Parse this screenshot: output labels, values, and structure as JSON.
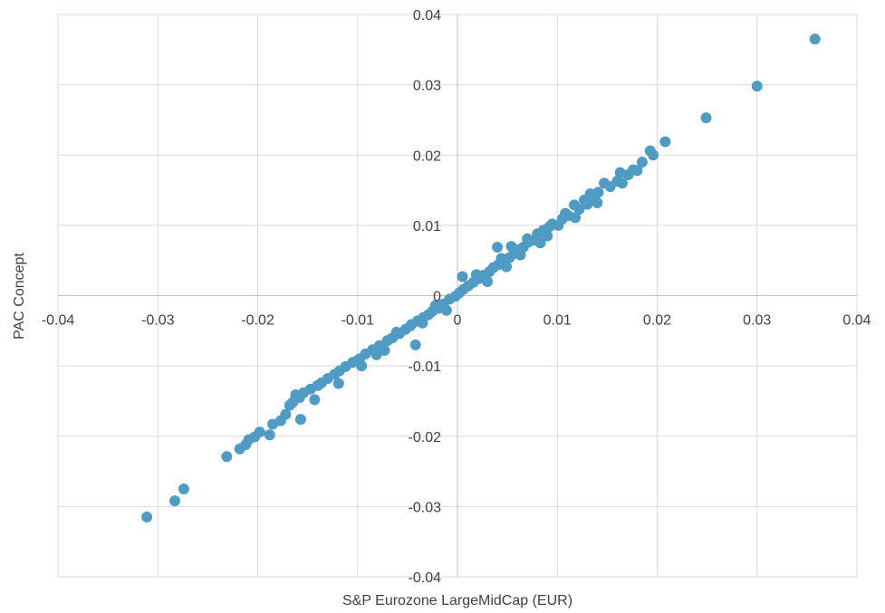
{
  "chart_data": {
    "type": "scatter",
    "title": "",
    "xlabel": "S&P Eurozone LargeMidCap (EUR)",
    "ylabel": "PAC Concept",
    "xlim": [
      -0.04,
      0.04
    ],
    "ylim": [
      -0.04,
      0.04
    ],
    "x_ticks": [
      -0.04,
      -0.03,
      -0.02,
      -0.01,
      0,
      0.01,
      0.02,
      0.03,
      0.04
    ],
    "y_ticks": [
      -0.04,
      -0.03,
      -0.02,
      -0.01,
      0,
      0.01,
      0.02,
      0.03,
      0.04
    ],
    "x_tick_labels": [
      "-0.04",
      "-0.03",
      "-0.02",
      "-0.01",
      "0",
      "0.01",
      "0.02",
      "0.03",
      "0.04"
    ],
    "y_tick_labels": [
      "-0.04",
      "-0.03",
      "-0.02",
      "-0.01",
      "0",
      "0.01",
      "0.02",
      "0.03",
      "0.04"
    ],
    "grid": true,
    "legend": "none",
    "marker_color": "#4f9bc4",
    "series": [
      {
        "points": [
          [
            0.0358,
            0.0365
          ],
          [
            0.03,
            0.0298
          ],
          [
            0.0249,
            0.0253
          ],
          [
            0.0208,
            0.0219
          ],
          [
            0.0193,
            0.0206
          ],
          [
            0.0196,
            0.02
          ],
          [
            0.0185,
            0.019
          ],
          [
            0.0176,
            0.0179
          ],
          [
            0.0163,
            0.0175
          ],
          [
            0.0171,
            0.0172
          ],
          [
            0.016,
            0.0163
          ],
          [
            0.0147,
            0.016
          ],
          [
            0.0153,
            0.0155
          ],
          [
            0.0141,
            0.0147
          ],
          [
            0.0133,
            0.0145
          ],
          [
            0.0137,
            0.0138
          ],
          [
            0.013,
            0.013
          ],
          [
            0.0122,
            0.0123
          ],
          [
            0.0117,
            0.0129
          ],
          [
            0.0111,
            0.0114
          ],
          [
            0.0105,
            0.0109
          ],
          [
            0.0101,
            0.01
          ],
          [
            0.0092,
            0.0098
          ],
          [
            0.0086,
            0.0093
          ],
          [
            0.008,
            0.0088
          ],
          [
            0.0077,
            0.0079
          ],
          [
            0.0071,
            0.0076
          ],
          [
            0.0066,
            0.0069
          ],
          [
            0.006,
            0.0065
          ],
          [
            0.0057,
            0.006
          ],
          [
            0.0052,
            0.0054
          ],
          [
            0.0046,
            0.0049
          ],
          [
            0.0041,
            0.0044
          ],
          [
            0.0036,
            0.004
          ],
          [
            0.0032,
            0.0034
          ],
          [
            0.004,
            0.0069
          ],
          [
            0.0026,
            0.0029
          ],
          [
            0.0021,
            0.0024
          ],
          [
            0.0016,
            0.0019
          ],
          [
            0.0011,
            0.0014
          ],
          [
            0.0006,
            0.0009
          ],
          [
            0.0002,
            0.0004
          ],
          [
            0.0005,
            0.0027
          ],
          [
            -0.0002,
            -0.0001
          ],
          [
            -0.0008,
            -0.0005
          ],
          [
            -0.0014,
            -0.0012
          ],
          [
            -0.0019,
            -0.0018
          ],
          [
            -0.0025,
            -0.0022
          ],
          [
            -0.0029,
            -0.0027
          ],
          [
            -0.0034,
            -0.0031
          ],
          [
            -0.004,
            -0.0036
          ],
          [
            -0.0046,
            -0.0041
          ],
          [
            -0.0052,
            -0.0048
          ],
          [
            -0.0042,
            -0.007
          ],
          [
            -0.0058,
            -0.0054
          ],
          [
            -0.0065,
            -0.006
          ],
          [
            -0.007,
            -0.0064
          ],
          [
            -0.0078,
            -0.0071
          ],
          [
            -0.0085,
            -0.0077
          ],
          [
            -0.0092,
            -0.0083
          ],
          [
            -0.0098,
            -0.009
          ],
          [
            -0.0105,
            -0.0095
          ],
          [
            -0.0112,
            -0.0101
          ],
          [
            -0.0118,
            -0.0107
          ],
          [
            -0.0123,
            -0.0112
          ],
          [
            -0.013,
            -0.0118
          ],
          [
            -0.0136,
            -0.0124
          ],
          [
            -0.014,
            -0.0128
          ],
          [
            -0.0147,
            -0.0133
          ],
          [
            -0.0154,
            -0.0138
          ],
          [
            -0.0158,
            -0.0145
          ],
          [
            -0.0162,
            -0.0141
          ],
          [
            -0.0168,
            -0.0156
          ],
          [
            -0.0172,
            -0.0169
          ],
          [
            -0.0177,
            -0.0178
          ],
          [
            -0.0185,
            -0.0183
          ],
          [
            -0.0157,
            -0.0176
          ],
          [
            -0.0198,
            -0.0194
          ],
          [
            -0.0203,
            -0.0201
          ],
          [
            -0.0212,
            -0.0212
          ],
          [
            -0.0218,
            -0.0218
          ],
          [
            -0.0231,
            -0.0229
          ],
          [
            -0.0274,
            -0.0275
          ],
          [
            -0.0283,
            -0.0292
          ],
          [
            -0.0311,
            -0.0315
          ],
          [
            0.009,
            0.0085
          ],
          [
            0.0095,
            0.0102
          ],
          [
            0.0108,
            0.0117
          ],
          [
            0.0118,
            0.0111
          ],
          [
            0.0127,
            0.0136
          ],
          [
            0.0054,
            0.007
          ],
          [
            0.0063,
            0.0058
          ],
          [
            0.007,
            0.0081
          ],
          [
            0.0083,
            0.0075
          ],
          [
            0.003,
            0.002
          ],
          [
            0.0019,
            0.003
          ],
          [
            -0.0011,
            -0.0021
          ],
          [
            -0.0022,
            -0.0014
          ],
          [
            -0.0061,
            -0.0052
          ],
          [
            -0.0073,
            -0.0078
          ],
          [
            -0.0096,
            -0.01
          ],
          [
            -0.0119,
            -0.0125
          ],
          [
            -0.0143,
            -0.0148
          ],
          [
            -0.0165,
            -0.0152
          ],
          [
            -0.0188,
            -0.0198
          ],
          [
            -0.0209,
            -0.0205
          ],
          [
            0.014,
            0.0132
          ],
          [
            0.0165,
            0.016
          ],
          [
            0.018,
            0.0178
          ],
          [
            0.0049,
            0.0041
          ],
          [
            0.0044,
            0.0053
          ],
          [
            -0.0035,
            -0.0039
          ],
          [
            -0.0047,
            -0.0043
          ],
          [
            -0.0081,
            -0.0084
          ],
          [
            -0.0101,
            -0.0093
          ]
        ]
      }
    ]
  }
}
